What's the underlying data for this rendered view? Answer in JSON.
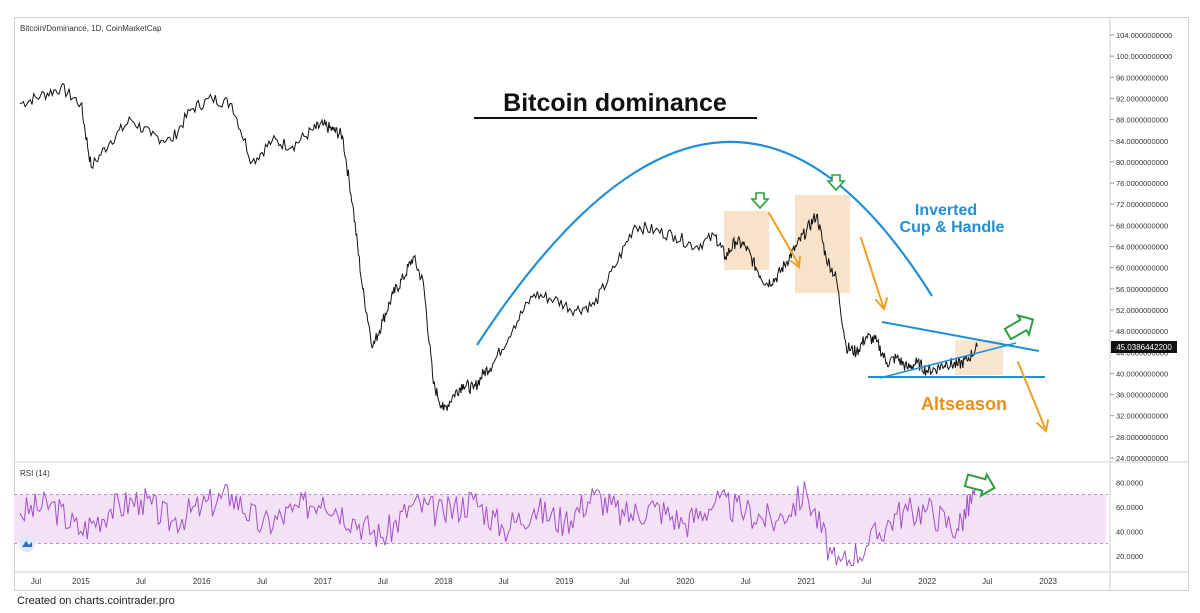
{
  "header": {
    "symbol_label": "Bitcoin/Dominance, 1D, CoinMarketCap"
  },
  "chart_data": [
    {
      "type": "line",
      "title": "Bitcoin dominance",
      "series": [
        {
          "values_note": "",
          "x": [
            "2014-07",
            "2014-09",
            "2014-11",
            "2015-01",
            "2015-02",
            "2015-04",
            "2015-06",
            "2015-08",
            "2015-10",
            "2015-12",
            "2016-02",
            "2016-04",
            "2016-06",
            "2016-08",
            "2016-10",
            "2016-12",
            "2017-01",
            "2017-02",
            "2017-03",
            "2017-04",
            "2017-05",
            "2017-06",
            "2017-07",
            "2017-08",
            "2017-09",
            "2017-10",
            "2017-11",
            "2017-12",
            "2018-01",
            "2018-02",
            "2018-03",
            "2018-04",
            "2018-05",
            "2018-06",
            "2018-08",
            "2018-10",
            "2018-12",
            "2019-02",
            "2019-04",
            "2019-06",
            "2019-08",
            "2019-10",
            "2019-12",
            "2020-02",
            "2020-04",
            "2020-05",
            "2020-06",
            "2020-07",
            "2020-08",
            "2020-09",
            "2020-10",
            "2020-11",
            "2020-12",
            "2021-01",
            "2021-02",
            "2021-03",
            "2021-04",
            "2021-05",
            "2021-06",
            "2021-07",
            "2021-08",
            "2021-09",
            "2021-10",
            "2021-11",
            "2021-12",
            "2022-01",
            "2022-02",
            "2022-03",
            "2022-04",
            "2022-05",
            "2022-06"
          ],
          "values": [
            91,
            92.5,
            94,
            91,
            79,
            84,
            88,
            85,
            84,
            90,
            92,
            91,
            80,
            84,
            83,
            86,
            87,
            86,
            85,
            72,
            56,
            45,
            50,
            55,
            58,
            62,
            57,
            38,
            33,
            36,
            38,
            37,
            40,
            42,
            49,
            55,
            54,
            52,
            53,
            60,
            68,
            67,
            66,
            64,
            66,
            62,
            65,
            64,
            60,
            57,
            58,
            61,
            64,
            67,
            70,
            62,
            58,
            45,
            44,
            47,
            46,
            42,
            43,
            41,
            42,
            40.5,
            41,
            42,
            41.5,
            42.5,
            45.04
          ]
        }
      ],
      "ylim": [
        24,
        104
      ],
      "y_ticks": [
        "104.0000000000",
        "100.0000000000",
        "96.0000000000",
        "92.0000000000",
        "88.0000000000",
        "84.0000000000",
        "80.0000000000",
        "76.0000000000",
        "72.0000000000",
        "68.0000000000",
        "64.0000000000",
        "60.0000000000",
        "56.0000000000",
        "52.0000000000",
        "48.0000000000",
        "44.0000000000",
        "40.0000000000",
        "36.0000000000",
        "32.0000000000",
        "28.0000000000",
        "24.0000000000"
      ],
      "last_value_label": "45.0386442200",
      "x_ticks": [
        "Jul",
        "2015",
        "Jul",
        "2016",
        "Jul",
        "2017",
        "Jul",
        "2018",
        "Jul",
        "2019",
        "Jul",
        "2020",
        "Jul",
        "2021",
        "Jul",
        "2022",
        "Jul",
        "2023"
      ],
      "annotations": {
        "pattern_label_line1": "Inverted",
        "pattern_label_line2": "Cup & Handle",
        "altseason_label": "Altseason"
      },
      "colors": {
        "price_line": "#111111",
        "arc": "#1f8fd6",
        "trend_lines": "#1f8fd6",
        "arrows": "#f0a020",
        "highlight_boxes": "#f6d9b8",
        "marker_arrows": "#2e9e3e",
        "pattern_label": "#1f8fd6",
        "altseason_label": "#e8901c"
      }
    },
    {
      "type": "line",
      "title": "RSI (14)",
      "series": [
        {
          "x": [
            "2014-07",
            "2014-10",
            "2015-01",
            "2015-04",
            "2015-07",
            "2015-10",
            "2016-01",
            "2016-04",
            "2016-07",
            "2016-10",
            "2017-01",
            "2017-04",
            "2017-07",
            "2017-10",
            "2018-01",
            "2018-04",
            "2018-07",
            "2018-10",
            "2019-01",
            "2019-04",
            "2019-07",
            "2019-10",
            "2020-01",
            "2020-04",
            "2020-07",
            "2020-10",
            "2021-01",
            "2021-04",
            "2021-07",
            "2021-10",
            "2022-01",
            "2022-04",
            "2022-06"
          ],
          "values": [
            55,
            62,
            40,
            58,
            66,
            48,
            60,
            70,
            44,
            56,
            68,
            50,
            35,
            62,
            54,
            66,
            42,
            58,
            48,
            70,
            52,
            60,
            46,
            64,
            56,
            48,
            72,
            10,
            28,
            54,
            58,
            42,
            74
          ]
        }
      ],
      "ylim": [
        10,
        90
      ],
      "y_ticks": [
        "80.0000",
        "60.0000",
        "40.0000",
        "20.0000"
      ],
      "band": [
        30,
        70
      ],
      "colors": {
        "line": "#a24fc8",
        "band": "#f3e1f6",
        "band_edges": "#c48bd2"
      }
    }
  ],
  "footer": {
    "credit": "Created on charts.cointrader.pro"
  }
}
